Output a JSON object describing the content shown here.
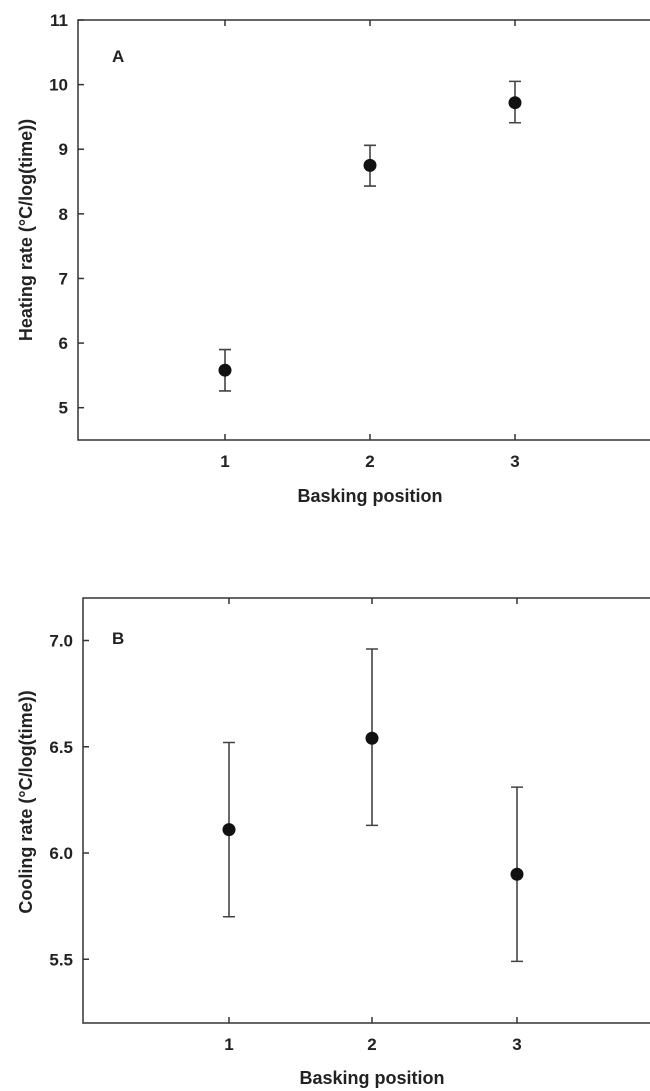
{
  "chart_data": [
    {
      "type": "scatter",
      "panel_label": "A",
      "xlabel": "Basking position",
      "ylabel": "Heating rate (°C/log(time))",
      "categories": [
        "1",
        "2",
        "3"
      ],
      "y_ticks": [
        "5",
        "6",
        "7",
        "8",
        "9",
        "10",
        "11"
      ],
      "ylim": [
        4.5,
        11
      ],
      "series": [
        {
          "points": [
            {
              "x": "1",
              "y": 5.58,
              "lower": 5.26,
              "upper": 5.9
            },
            {
              "x": "2",
              "y": 8.75,
              "lower": 8.43,
              "upper": 9.06
            },
            {
              "x": "3",
              "y": 9.72,
              "lower": 9.41,
              "upper": 10.05
            }
          ]
        }
      ],
      "grid": false
    },
    {
      "type": "scatter",
      "panel_label": "B",
      "xlabel": "Basking position",
      "ylabel": "Cooling rate (°C/log(time))",
      "categories": [
        "1",
        "2",
        "3"
      ],
      "y_ticks": [
        "5.5",
        "6.0",
        "6.5",
        "7.0"
      ],
      "ylim": [
        5.2,
        7.2
      ],
      "series": [
        {
          "points": [
            {
              "x": "1",
              "y": 6.11,
              "lower": 5.7,
              "upper": 6.52
            },
            {
              "x": "2",
              "y": 6.54,
              "lower": 6.13,
              "upper": 6.96
            },
            {
              "x": "3",
              "y": 5.9,
              "lower": 5.49,
              "upper": 6.31
            }
          ]
        }
      ],
      "grid": false
    }
  ]
}
